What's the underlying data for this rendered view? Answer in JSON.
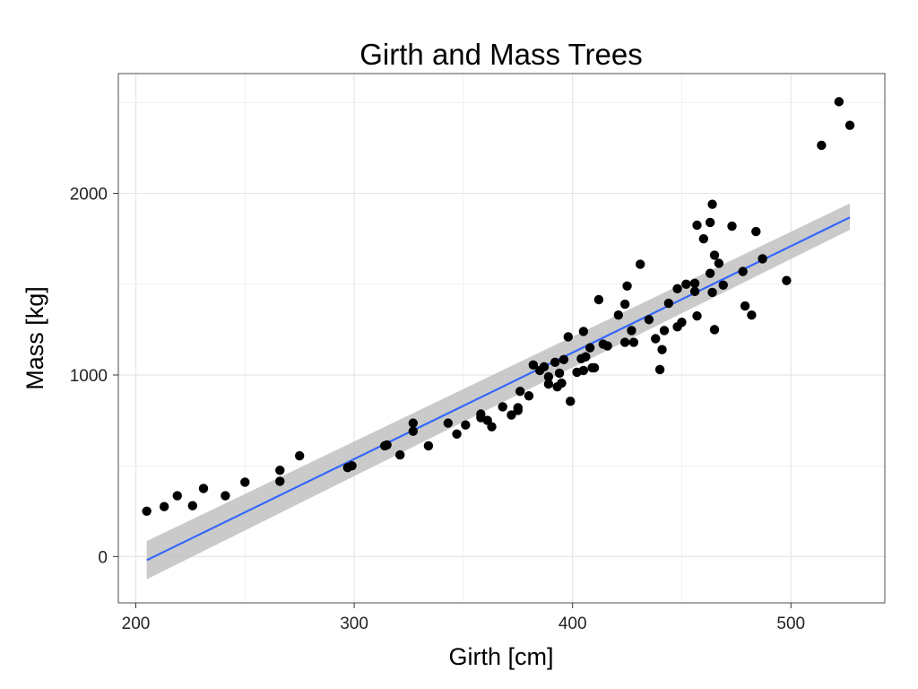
{
  "chart_data": {
    "type": "scatter",
    "title": "Girth and Mass Trees",
    "xlabel": "Girth [cm]",
    "ylabel": "Mass [kg]",
    "xlim": [
      192,
      543
    ],
    "ylim": [
      -255,
      2660
    ],
    "xticks": [
      200,
      300,
      400,
      500
    ],
    "yticks": [
      0,
      1000,
      2000
    ],
    "x_tick_labels": [
      "200",
      "300",
      "400",
      "500"
    ],
    "y_tick_labels": [
      "0",
      "1000",
      "2000"
    ],
    "grid": true,
    "colors": {
      "points": "#000000",
      "fit_line": "#3366ff",
      "confidence_band": "#bdbdbd",
      "grid": "#e6e6e6",
      "panel_border": "#4d4d4d"
    },
    "fit": {
      "type": "linear",
      "x": [
        205,
        527
      ],
      "y": [
        -20,
        1868
      ],
      "band_lower": [
        -125,
        1800
      ],
      "band_upper": [
        85,
        1945
      ]
    },
    "points": [
      {
        "x": 205,
        "y": 250
      },
      {
        "x": 213,
        "y": 275
      },
      {
        "x": 219,
        "y": 335
      },
      {
        "x": 226,
        "y": 280
      },
      {
        "x": 231,
        "y": 375
      },
      {
        "x": 241,
        "y": 335
      },
      {
        "x": 250,
        "y": 410
      },
      {
        "x": 266,
        "y": 475
      },
      {
        "x": 266,
        "y": 415
      },
      {
        "x": 275,
        "y": 555
      },
      {
        "x": 297,
        "y": 490
      },
      {
        "x": 299,
        "y": 500
      },
      {
        "x": 314,
        "y": 610
      },
      {
        "x": 315,
        "y": 615
      },
      {
        "x": 321,
        "y": 560
      },
      {
        "x": 327,
        "y": 735
      },
      {
        "x": 327,
        "y": 690
      },
      {
        "x": 334,
        "y": 610
      },
      {
        "x": 343,
        "y": 735
      },
      {
        "x": 347,
        "y": 675
      },
      {
        "x": 351,
        "y": 725
      },
      {
        "x": 358,
        "y": 785
      },
      {
        "x": 358,
        "y": 765
      },
      {
        "x": 361,
        "y": 750
      },
      {
        "x": 363,
        "y": 715
      },
      {
        "x": 368,
        "y": 825
      },
      {
        "x": 372,
        "y": 780
      },
      {
        "x": 375,
        "y": 805
      },
      {
        "x": 375,
        "y": 820
      },
      {
        "x": 376,
        "y": 910
      },
      {
        "x": 380,
        "y": 885
      },
      {
        "x": 382,
        "y": 1055
      },
      {
        "x": 385,
        "y": 1025
      },
      {
        "x": 387,
        "y": 1045
      },
      {
        "x": 389,
        "y": 950
      },
      {
        "x": 389,
        "y": 990
      },
      {
        "x": 392,
        "y": 1070
      },
      {
        "x": 393,
        "y": 935
      },
      {
        "x": 394,
        "y": 1010
      },
      {
        "x": 395,
        "y": 955
      },
      {
        "x": 396,
        "y": 1085
      },
      {
        "x": 398,
        "y": 1210
      },
      {
        "x": 399,
        "y": 855
      },
      {
        "x": 402,
        "y": 1015
      },
      {
        "x": 404,
        "y": 1090
      },
      {
        "x": 405,
        "y": 1240
      },
      {
        "x": 405,
        "y": 1025
      },
      {
        "x": 406,
        "y": 1100
      },
      {
        "x": 408,
        "y": 1150
      },
      {
        "x": 409,
        "y": 1040
      },
      {
        "x": 410,
        "y": 1040
      },
      {
        "x": 412,
        "y": 1415
      },
      {
        "x": 414,
        "y": 1170
      },
      {
        "x": 416,
        "y": 1160
      },
      {
        "x": 421,
        "y": 1330
      },
      {
        "x": 424,
        "y": 1390
      },
      {
        "x": 424,
        "y": 1180
      },
      {
        "x": 425,
        "y": 1490
      },
      {
        "x": 427,
        "y": 1245
      },
      {
        "x": 428,
        "y": 1180
      },
      {
        "x": 431,
        "y": 1610
      },
      {
        "x": 435,
        "y": 1305
      },
      {
        "x": 438,
        "y": 1200
      },
      {
        "x": 440,
        "y": 1030
      },
      {
        "x": 441,
        "y": 1140
      },
      {
        "x": 442,
        "y": 1245
      },
      {
        "x": 444,
        "y": 1395
      },
      {
        "x": 448,
        "y": 1475
      },
      {
        "x": 448,
        "y": 1265
      },
      {
        "x": 450,
        "y": 1290
      },
      {
        "x": 452,
        "y": 1500
      },
      {
        "x": 456,
        "y": 1460
      },
      {
        "x": 456,
        "y": 1505
      },
      {
        "x": 457,
        "y": 1825
      },
      {
        "x": 457,
        "y": 1325
      },
      {
        "x": 460,
        "y": 1750
      },
      {
        "x": 463,
        "y": 1840
      },
      {
        "x": 463,
        "y": 1560
      },
      {
        "x": 464,
        "y": 1940
      },
      {
        "x": 464,
        "y": 1455
      },
      {
        "x": 465,
        "y": 1250
      },
      {
        "x": 465,
        "y": 1660
      },
      {
        "x": 467,
        "y": 1615
      },
      {
        "x": 469,
        "y": 1495
      },
      {
        "x": 473,
        "y": 1820
      },
      {
        "x": 478,
        "y": 1570
      },
      {
        "x": 479,
        "y": 1380
      },
      {
        "x": 482,
        "y": 1330
      },
      {
        "x": 484,
        "y": 1790
      },
      {
        "x": 487,
        "y": 1640
      },
      {
        "x": 498,
        "y": 1520
      },
      {
        "x": 514,
        "y": 2265
      },
      {
        "x": 522,
        "y": 2505
      },
      {
        "x": 527,
        "y": 2375
      }
    ]
  }
}
